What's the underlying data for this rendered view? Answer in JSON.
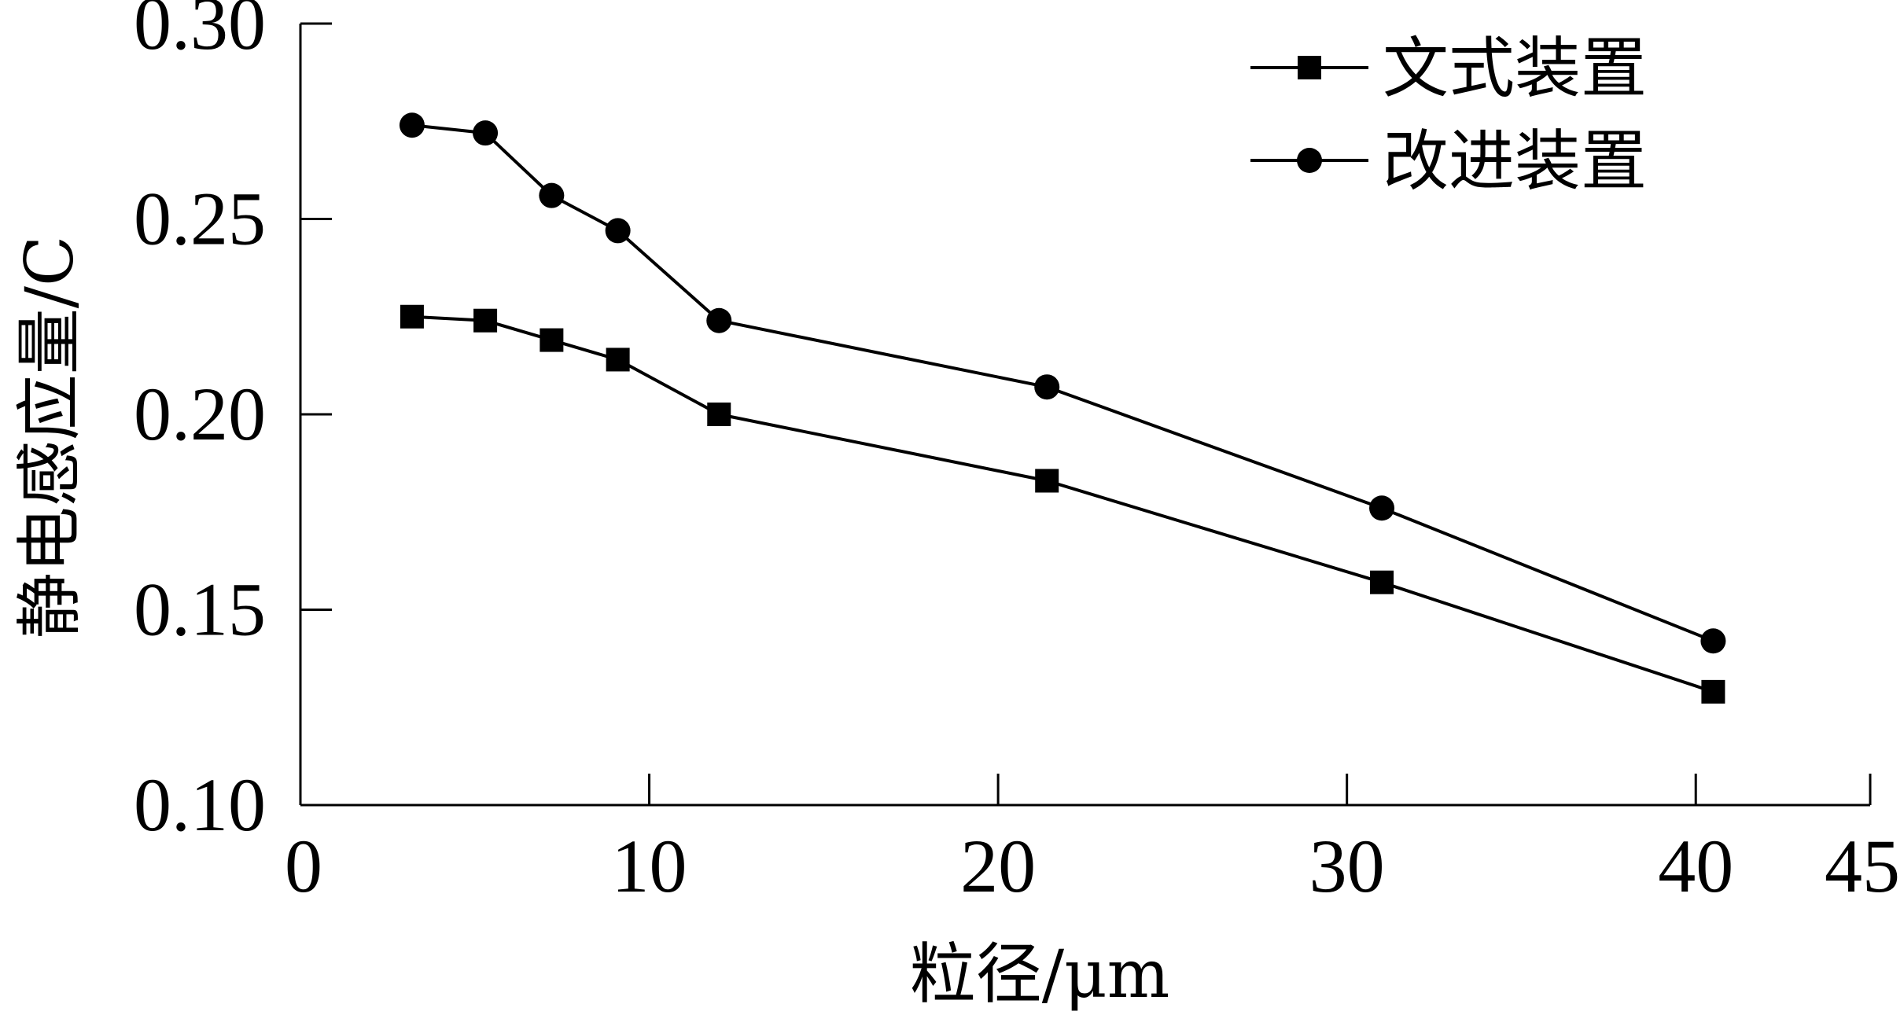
{
  "chart_data": {
    "type": "line",
    "title": "",
    "xlabel": "粒径/μm",
    "ylabel": "静电感应量/C",
    "xlim": [
      0,
      45
    ],
    "ylim": [
      0.1,
      0.3
    ],
    "x_ticks": [
      0,
      10,
      20,
      30,
      40,
      45
    ],
    "x_tick_labels": [
      "0",
      "10",
      "20",
      "30",
      "40",
      "45"
    ],
    "y_ticks": [
      0.1,
      0.15,
      0.2,
      0.25,
      0.3
    ],
    "y_tick_labels": [
      "0.10",
      "0.15",
      "0.20",
      "0.25",
      "0.30"
    ],
    "grid": false,
    "legend_position": "top-right",
    "series": [
      {
        "name": "文式装置",
        "marker": "square",
        "color": "#000000",
        "x": [
          3.2,
          5.3,
          7.2,
          9.1,
          12.0,
          21.4,
          31.0,
          40.5
        ],
        "values": [
          0.225,
          0.224,
          0.219,
          0.214,
          0.2,
          0.183,
          0.157,
          0.129
        ]
      },
      {
        "name": "改进装置",
        "marker": "circle",
        "color": "#000000",
        "x": [
          3.2,
          5.3,
          7.2,
          9.1,
          12.0,
          21.4,
          31.0,
          40.5
        ],
        "values": [
          0.274,
          0.272,
          0.256,
          0.247,
          0.224,
          0.207,
          0.176,
          0.142
        ]
      }
    ]
  }
}
